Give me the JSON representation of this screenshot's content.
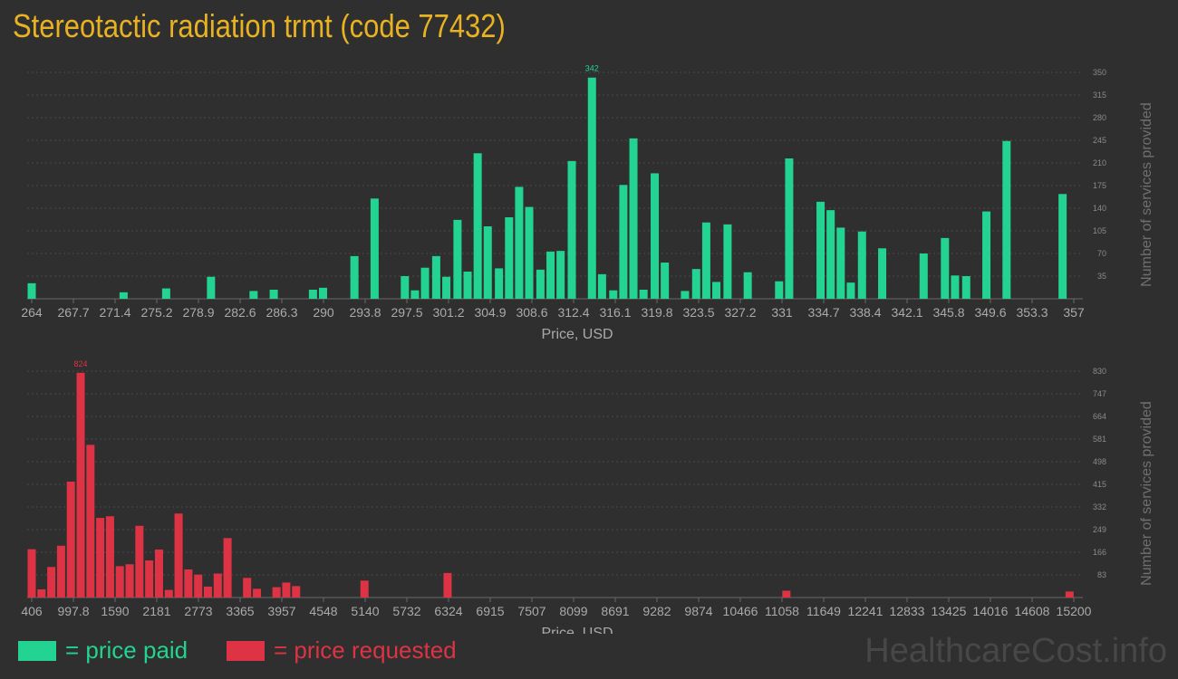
{
  "title": "Stereotactic radiation trmt (code 77432)",
  "legend": {
    "paid_label": "= price paid",
    "requested_label": "= price requested"
  },
  "watermark": "HealthcareCost.info",
  "colors": {
    "paid": "#22d392",
    "requested": "#dd3344",
    "title": "#e8b222",
    "background": "#2f2f2f"
  },
  "chart_data": [
    {
      "type": "bar",
      "name": "price paid",
      "color": "#22d392",
      "xlabel": "Price, USD",
      "ylabel": "Number of services provided",
      "x_ticks": [
        "264",
        "267.7",
        "271.4",
        "275.2",
        "278.9",
        "282.6",
        "286.3",
        "290",
        "293.8",
        "297.5",
        "301.2",
        "304.9",
        "308.6",
        "312.4",
        "316.1",
        "319.8",
        "323.5",
        "327.2",
        "331",
        "334.7",
        "338.4",
        "342.1",
        "345.8",
        "349.6",
        "353.3",
        "357"
      ],
      "y_ticks": [
        "35",
        "70",
        "105",
        "140",
        "175",
        "210",
        "245",
        "280",
        "315",
        "350"
      ],
      "xlim": [
        264,
        357
      ],
      "ylim": [
        0,
        350
      ],
      "peak_label": "342",
      "bars": [
        {
          "x": 264,
          "y": 24
        },
        {
          "x": 272.2,
          "y": 10
        },
        {
          "x": 276,
          "y": 16
        },
        {
          "x": 280,
          "y": 34
        },
        {
          "x": 283.8,
          "y": 12
        },
        {
          "x": 285.6,
          "y": 14
        },
        {
          "x": 289.1,
          "y": 14
        },
        {
          "x": 290,
          "y": 17
        },
        {
          "x": 292.8,
          "y": 66
        },
        {
          "x": 294.6,
          "y": 155
        },
        {
          "x": 297.3,
          "y": 35
        },
        {
          "x": 298.2,
          "y": 13
        },
        {
          "x": 299.1,
          "y": 48
        },
        {
          "x": 300.1,
          "y": 66
        },
        {
          "x": 301,
          "y": 34
        },
        {
          "x": 302,
          "y": 122
        },
        {
          "x": 302.9,
          "y": 42
        },
        {
          "x": 303.8,
          "y": 225
        },
        {
          "x": 304.7,
          "y": 112
        },
        {
          "x": 305.7,
          "y": 47
        },
        {
          "x": 306.6,
          "y": 126
        },
        {
          "x": 307.5,
          "y": 173
        },
        {
          "x": 308.4,
          "y": 142
        },
        {
          "x": 309.4,
          "y": 45
        },
        {
          "x": 310.3,
          "y": 73
        },
        {
          "x": 311.2,
          "y": 74
        },
        {
          "x": 312.2,
          "y": 213
        },
        {
          "x": 314,
          "y": 342
        },
        {
          "x": 314.9,
          "y": 38
        },
        {
          "x": 315.9,
          "y": 13
        },
        {
          "x": 316.8,
          "y": 176
        },
        {
          "x": 317.7,
          "y": 248
        },
        {
          "x": 318.6,
          "y": 14
        },
        {
          "x": 319.6,
          "y": 194
        },
        {
          "x": 320.5,
          "y": 56
        },
        {
          "x": 322.3,
          "y": 12
        },
        {
          "x": 323.3,
          "y": 46
        },
        {
          "x": 324.2,
          "y": 118
        },
        {
          "x": 325.1,
          "y": 26
        },
        {
          "x": 326.1,
          "y": 115
        },
        {
          "x": 327.9,
          "y": 41
        },
        {
          "x": 330.7,
          "y": 27
        },
        {
          "x": 331.6,
          "y": 217
        },
        {
          "x": 334.4,
          "y": 150
        },
        {
          "x": 335.3,
          "y": 137
        },
        {
          "x": 336.2,
          "y": 110
        },
        {
          "x": 337.1,
          "y": 25
        },
        {
          "x": 338.1,
          "y": 104
        },
        {
          "x": 339.9,
          "y": 78
        },
        {
          "x": 343.6,
          "y": 70
        },
        {
          "x": 345.5,
          "y": 94
        },
        {
          "x": 346.4,
          "y": 36
        },
        {
          "x": 347.4,
          "y": 35
        },
        {
          "x": 349.2,
          "y": 135
        },
        {
          "x": 351,
          "y": 244
        },
        {
          "x": 356,
          "y": 162
        }
      ]
    },
    {
      "type": "bar",
      "name": "price requested",
      "color": "#dd3344",
      "xlabel": "Price, USD",
      "ylabel": "Number of services provided",
      "x_ticks": [
        "406",
        "997.8",
        "1590",
        "2181",
        "2773",
        "3365",
        "3957",
        "4548",
        "5140",
        "5732",
        "6324",
        "6915",
        "7507",
        "8099",
        "8691",
        "9282",
        "9874",
        "10466",
        "11058",
        "11649",
        "12241",
        "12833",
        "13425",
        "14016",
        "14608",
        "15200"
      ],
      "y_ticks": [
        "83",
        "166",
        "249",
        "332",
        "415",
        "498",
        "581",
        "664",
        "747",
        "830"
      ],
      "xlim": [
        406,
        15200
      ],
      "ylim": [
        0,
        830
      ],
      "peak_label": "824",
      "bars": [
        {
          "x": 406,
          "y": 177
        },
        {
          "x": 545,
          "y": 30
        },
        {
          "x": 684,
          "y": 112
        },
        {
          "x": 823,
          "y": 190
        },
        {
          "x": 962,
          "y": 425
        },
        {
          "x": 1101,
          "y": 824
        },
        {
          "x": 1240,
          "y": 560
        },
        {
          "x": 1379,
          "y": 292
        },
        {
          "x": 1518,
          "y": 298
        },
        {
          "x": 1657,
          "y": 115
        },
        {
          "x": 1796,
          "y": 122
        },
        {
          "x": 1935,
          "y": 263
        },
        {
          "x": 2074,
          "y": 136
        },
        {
          "x": 2213,
          "y": 176
        },
        {
          "x": 2352,
          "y": 28
        },
        {
          "x": 2491,
          "y": 308
        },
        {
          "x": 2630,
          "y": 103
        },
        {
          "x": 2769,
          "y": 84
        },
        {
          "x": 2908,
          "y": 40
        },
        {
          "x": 3047,
          "y": 88
        },
        {
          "x": 3186,
          "y": 218
        },
        {
          "x": 3464,
          "y": 72
        },
        {
          "x": 3603,
          "y": 32
        },
        {
          "x": 3881,
          "y": 38
        },
        {
          "x": 4020,
          "y": 55
        },
        {
          "x": 4159,
          "y": 42
        },
        {
          "x": 5130,
          "y": 62
        },
        {
          "x": 6310,
          "y": 90
        },
        {
          "x": 11120,
          "y": 25
        },
        {
          "x": 15140,
          "y": 22
        }
      ]
    }
  ]
}
